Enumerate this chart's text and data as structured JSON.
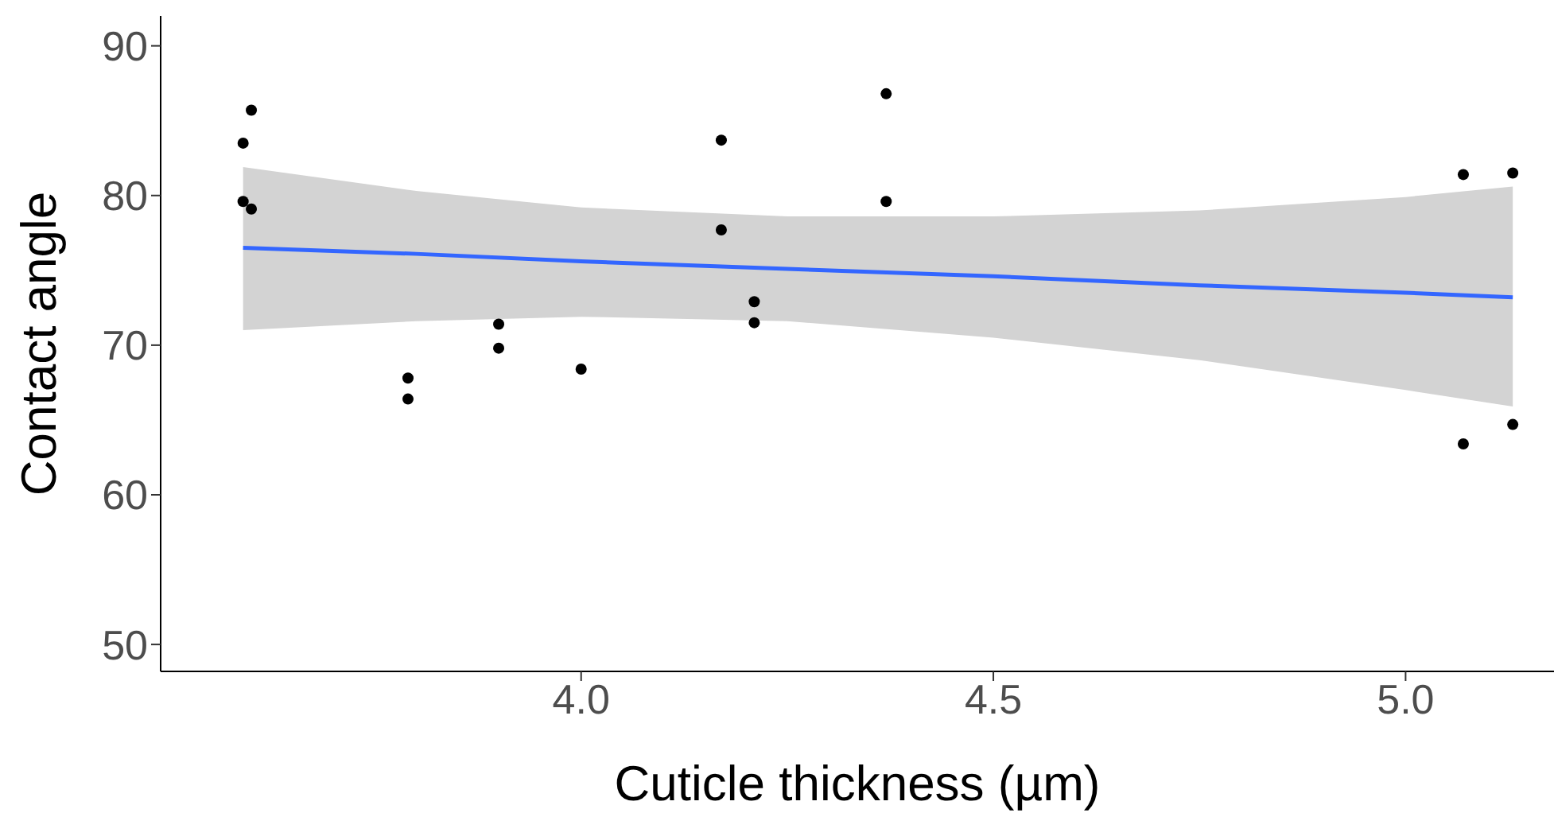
{
  "chart_data": {
    "type": "scatter",
    "xlabel": "Cuticle thickness (µm)",
    "ylabel": "Contact angle",
    "xlim": [
      3.49,
      5.18
    ],
    "xticks": [
      {
        "value": 4.0,
        "label": "4.0"
      },
      {
        "value": 4.5,
        "label": "4.5"
      },
      {
        "value": 5.0,
        "label": "5.0"
      }
    ],
    "ylim": [
      48.2,
      92
    ],
    "yticks": [
      50,
      60,
      70,
      80,
      90
    ],
    "grid": false,
    "series": [
      {
        "color": "#000000",
        "marker": "circle",
        "x": [
          3.59,
          3.6,
          3.59,
          3.6,
          3.79,
          3.79,
          3.9,
          3.9,
          4.0,
          4.17,
          4.17,
          4.21,
          4.21,
          4.37,
          4.37,
          5.07,
          5.07,
          5.13,
          5.13
        ],
        "values": [
          83.5,
          85.7,
          79.6,
          79.1,
          67.8,
          66.4,
          71.4,
          69.8,
          68.4,
          83.7,
          77.7,
          72.9,
          71.5,
          86.8,
          79.6,
          81.4,
          63.4,
          81.5,
          64.7
        ]
      },
      {
        "type": "line",
        "color": "#3366ff",
        "x": [
          3.59,
          3.8,
          4.0,
          4.25,
          4.5,
          4.75,
          5.0,
          5.13
        ],
        "values": [
          76.5,
          76.1,
          75.6,
          75.1,
          74.6,
          74.0,
          73.5,
          73.2
        ],
        "lower": [
          71.0,
          71.6,
          71.9,
          71.6,
          70.5,
          69.0,
          67.0,
          65.9
        ],
        "upper": [
          81.9,
          80.3,
          79.2,
          78.6,
          78.6,
          79.0,
          79.9,
          80.6
        ]
      }
    ]
  }
}
